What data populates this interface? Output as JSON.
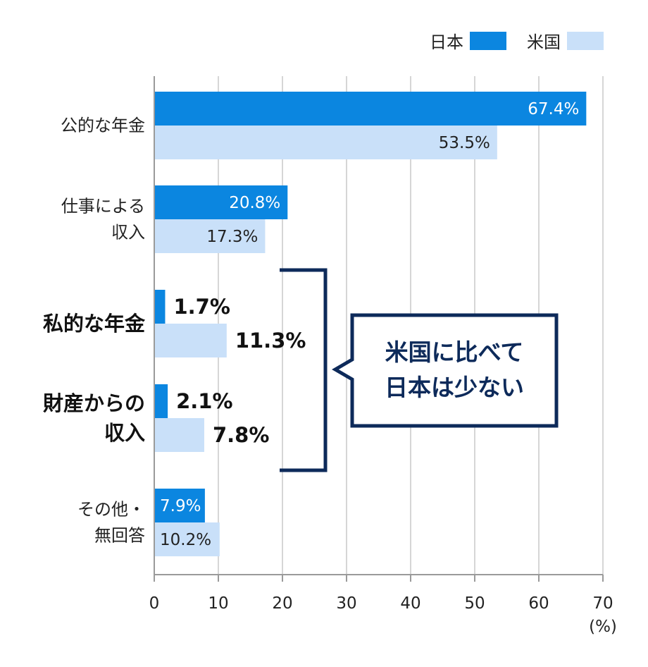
{
  "chart_data": {
    "type": "bar",
    "orientation": "horizontal",
    "categories": [
      {
        "lines": [
          "公的な年金"
        ],
        "emphasized": false
      },
      {
        "lines": [
          "仕事による",
          "収入"
        ],
        "emphasized": false
      },
      {
        "lines": [
          "私的な年金"
        ],
        "emphasized": true
      },
      {
        "lines": [
          "財産からの",
          "収入"
        ],
        "emphasized": true
      },
      {
        "lines": [
          "その他・",
          "無回答"
        ],
        "emphasized": false
      }
    ],
    "series": [
      {
        "name": "日本",
        "color": "#0b86e0",
        "values": [
          67.4,
          20.8,
          1.7,
          2.1,
          7.9
        ],
        "labels": [
          "67.4%",
          "20.8%",
          "1.7%",
          "2.1%",
          "7.9%"
        ]
      },
      {
        "name": "米国",
        "color": "#c9e0f9",
        "values": [
          53.5,
          17.3,
          11.3,
          7.8,
          10.2
        ],
        "labels": [
          "53.5%",
          "17.3%",
          "11.3%",
          "7.8%",
          "10.2%"
        ]
      }
    ],
    "xlim": [
      0,
      70
    ],
    "xticks": [
      "0",
      "10",
      "20",
      "30",
      "40",
      "50",
      "60",
      "70"
    ],
    "xunit": "(%)",
    "grid": true,
    "legend_position": "top-right",
    "annotation": {
      "lines": [
        "米国に比べて",
        "日本は少ない"
      ],
      "color": "#0d2a5a"
    }
  }
}
